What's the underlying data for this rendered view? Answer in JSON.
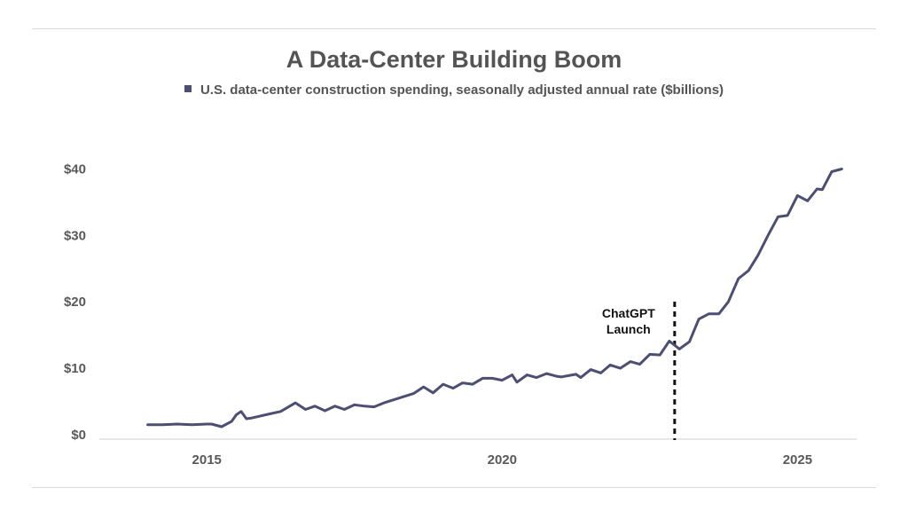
{
  "chart_data": {
    "type": "line",
    "title": "A Data-Center Building Boom",
    "legend": {
      "position": "top",
      "entries": [
        "U.S. data-center construction spending, seasonally adjusted annual rate ($billions)"
      ]
    },
    "series": [
      {
        "name": "U.S. data-center construction spending, seasonally adjusted annual rate ($billions)",
        "color": "#4c4e72",
        "x": [
          2014.0,
          2014.25,
          2014.5,
          2014.75,
          2015.0,
          2015.08,
          2015.25,
          2015.42,
          2015.5,
          2015.58,
          2015.67,
          2015.75,
          2016.0,
          2016.25,
          2016.5,
          2016.67,
          2016.83,
          2017.0,
          2017.17,
          2017.33,
          2017.5,
          2017.67,
          2017.83,
          2018.0,
          2018.25,
          2018.5,
          2018.67,
          2018.83,
          2019.0,
          2019.17,
          2019.33,
          2019.5,
          2019.67,
          2019.83,
          2020.0,
          2020.17,
          2020.25,
          2020.42,
          2020.58,
          2020.75,
          2020.92,
          2021.0,
          2021.25,
          2021.33,
          2021.5,
          2021.67,
          2021.83,
          2022.0,
          2022.17,
          2022.33,
          2022.5,
          2022.67,
          2022.83,
          2023.0,
          2023.17,
          2023.33,
          2023.5,
          2023.67,
          2023.83,
          2024.0,
          2024.17,
          2024.33,
          2024.5,
          2024.67,
          2024.83,
          2025.0,
          2025.17,
          2025.33,
          2025.42,
          2025.58,
          2025.75
        ],
        "values": [
          1.5,
          1.5,
          1.6,
          1.5,
          1.6,
          1.6,
          1.2,
          2.0,
          3.0,
          3.5,
          2.4,
          2.5,
          3.0,
          3.5,
          4.8,
          3.8,
          4.3,
          3.6,
          4.3,
          3.8,
          4.5,
          4.3,
          4.2,
          4.8,
          5.5,
          6.2,
          7.2,
          6.3,
          7.6,
          7.0,
          7.8,
          7.6,
          8.5,
          8.5,
          8.2,
          9.0,
          7.9,
          9.0,
          8.6,
          9.2,
          8.8,
          8.7,
          9.1,
          8.6,
          9.8,
          9.3,
          10.5,
          10.0,
          11.0,
          10.6,
          12.1,
          12.0,
          14.1,
          12.9,
          14.0,
          17.4,
          18.2,
          18.2,
          20.0,
          23.5,
          24.7,
          27.0,
          30.0,
          32.8,
          33.0,
          36.0,
          35.2,
          37.0,
          36.9,
          39.6,
          40.0
        ]
      }
    ],
    "xticks": [
      "2015",
      "2020",
      "2025"
    ],
    "xtick_values": [
      2015,
      2020,
      2025
    ],
    "yticks": [
      "$0",
      "$10",
      "$20",
      "$30",
      "$40"
    ],
    "ytick_values": [
      0,
      10,
      20,
      30,
      40
    ],
    "xlim": [
      2013.0,
      2026.0
    ],
    "ylim": [
      0,
      41
    ],
    "grid": false,
    "annotations": [
      {
        "x": 2022.92,
        "line1": "ChatGPT",
        "line2": "Launch"
      }
    ]
  }
}
